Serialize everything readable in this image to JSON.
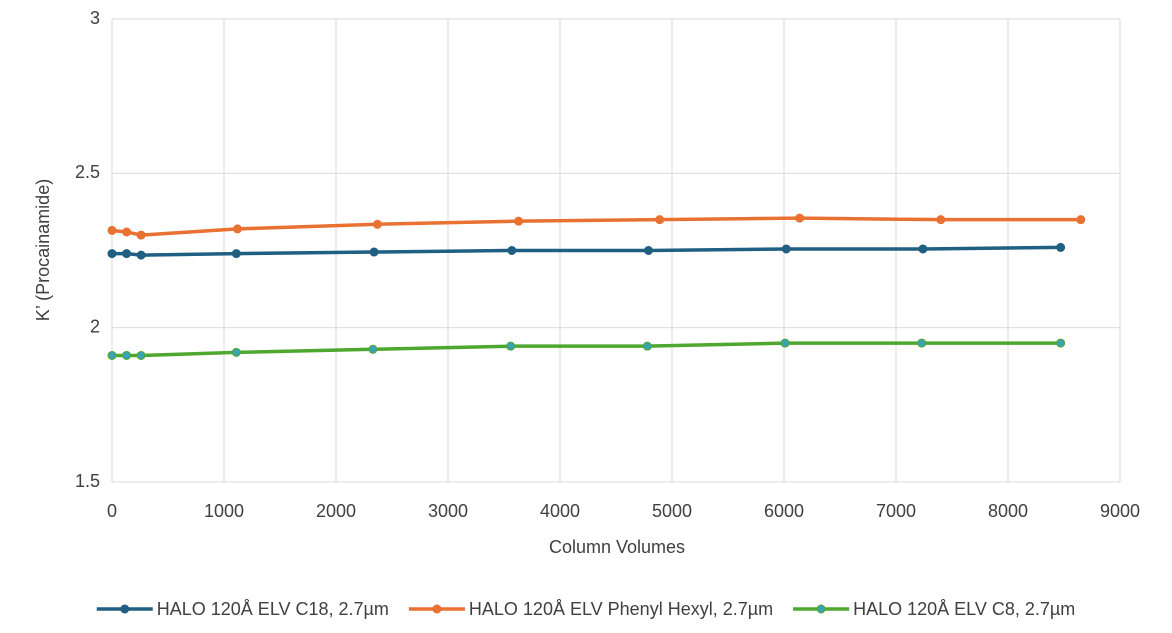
{
  "chart_data": {
    "type": "line",
    "x_label": "Column Volumes",
    "y_label": "K’ (Procainamide)",
    "xlim": [
      0,
      9000
    ],
    "xticks": [
      0,
      1000,
      2000,
      3000,
      4000,
      5000,
      6000,
      7000,
      8000,
      9000
    ],
    "ylim": [
      1.5,
      3
    ],
    "yticks": [
      1.5,
      2,
      2.5,
      3
    ],
    "grid": true,
    "legend": "bottom",
    "series": [
      {
        "name": "HALO 120Å ELV C18, 2.7µm",
        "color": "#1f5f82",
        "marker_color": "#1f5f82",
        "x": [
          0,
          130,
          260,
          1110,
          2340,
          3570,
          4790,
          6020,
          7240,
          8470
        ],
        "values": [
          2.24,
          2.24,
          2.235,
          2.24,
          2.245,
          2.25,
          2.25,
          2.255,
          2.255,
          2.26
        ]
      },
      {
        "name": "HALO 120Å ELV Phenyl Hexyl, 2.7µm",
        "color": "#e97132",
        "marker_color": "#e97132",
        "x": [
          0,
          130,
          260,
          1120,
          2370,
          3630,
          4890,
          6140,
          7400,
          8650
        ],
        "values": [
          2.315,
          2.31,
          2.3,
          2.32,
          2.335,
          2.345,
          2.35,
          2.355,
          2.35,
          2.35
        ]
      },
      {
        "name": "HALO 120Å ELV C8, 2.7µm",
        "color": "#4ea72e",
        "marker_color": "#3aa3b3",
        "x": [
          0,
          130,
          260,
          1110,
          2330,
          3560,
          4780,
          6010,
          7230,
          8470
        ],
        "values": [
          1.91,
          1.91,
          1.91,
          1.92,
          1.93,
          1.94,
          1.94,
          1.95,
          1.95,
          1.95
        ]
      }
    ]
  }
}
